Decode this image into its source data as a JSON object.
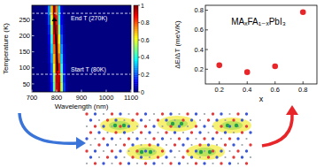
{
  "chart_data": [
    {
      "type": "heatmap",
      "x_label": "Wavelength (nm)",
      "y_label": "Temperature (K)",
      "xlim": [
        700,
        1100
      ],
      "xticks": [
        700,
        800,
        900,
        1000,
        1100
      ],
      "ylim": [
        25,
        295
      ],
      "yticks": [
        50,
        100,
        150,
        200,
        250
      ],
      "cells": {
        "x": [
          760,
          770,
          780,
          790,
          800,
          810,
          820,
          830,
          840,
          850,
          860
        ],
        "y": [
          40,
          70,
          100,
          130,
          160,
          190,
          220,
          250,
          280
        ],
        "values": [
          [
            0,
            0.02,
            0.14,
            0.47,
            0.9,
            0.96,
            0.55,
            0.19,
            0.04,
            0,
            0
          ],
          [
            0,
            0.03,
            0.16,
            0.51,
            0.93,
            0.93,
            0.51,
            0.16,
            0.03,
            0,
            0
          ],
          [
            0,
            0.04,
            0.21,
            0.6,
            0.98,
            0.86,
            0.42,
            0.12,
            0.02,
            0,
            0
          ],
          [
            0.01,
            0.06,
            0.27,
            0.69,
            1,
            0.77,
            0.34,
            0.08,
            0.01,
            0,
            0
          ],
          [
            0.01,
            0.08,
            0.34,
            0.77,
            1,
            0.69,
            0.27,
            0.06,
            0.01,
            0,
            0
          ],
          [
            0.01,
            0.12,
            0.42,
            0.86,
            0.98,
            0.6,
            0.21,
            0.04,
            0,
            0,
            0
          ],
          [
            0.02,
            0.16,
            0.51,
            0.93,
            0.93,
            0.51,
            0.16,
            0.03,
            0,
            0,
            0
          ],
          [
            0.04,
            0.21,
            0.6,
            0.98,
            0.86,
            0.42,
            0.12,
            0.02,
            0,
            0,
            0
          ],
          [
            0.05,
            0.27,
            0.69,
            1,
            0.77,
            0.34,
            0.08,
            0.01,
            0,
            0,
            0
          ]
        ]
      },
      "color_range": [
        0,
        1
      ],
      "color_ticks": [
        0,
        0.2,
        0.4,
        0.6,
        0.8,
        1
      ],
      "annotations": [
        {
          "text": "End T (270K)",
          "y": 270
        },
        {
          "text": "Start T (80K)",
          "y": 80
        }
      ]
    },
    {
      "type": "scatter",
      "title": "MAₓFA₁₋ₓPbI₃",
      "x_label": "x",
      "y_label": "ΔE/ΔT (meV/K)",
      "x": [
        0.2,
        0.4,
        0.6,
        0.8
      ],
      "values": [
        0.24,
        0.17,
        0.23,
        0.78
      ],
      "color": "#e8262a",
      "marker": "circle",
      "xlim": [
        0.1,
        0.9
      ],
      "xticks": [
        0.2,
        0.4,
        0.6,
        0.8
      ],
      "ylim": [
        0.05,
        0.85
      ],
      "yticks": [
        0.2,
        0.4,
        0.6,
        0.8
      ]
    }
  ]
}
